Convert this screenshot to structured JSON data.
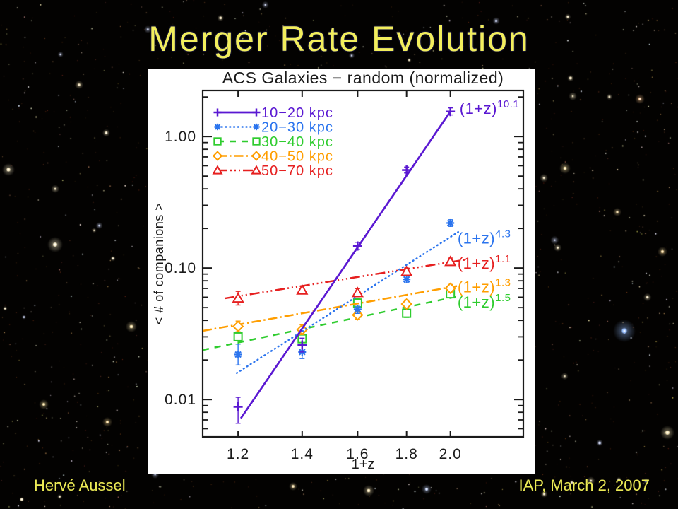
{
  "slide": {
    "title": "Merger Rate Evolution"
  },
  "footer": {
    "author": "Hervé Aussel",
    "venue_date": "IAP, March 2, 2007"
  },
  "colors": {
    "slide_title": "#f2ee5c",
    "footer_text": "#ecea55",
    "panel_bg": "#ffffff",
    "axis_ink": "#1a1a1a"
  },
  "chart_data": {
    "type": "line",
    "title": "ACS Galaxies − random (normalized)",
    "xlabel": "1+z",
    "ylabel": "< # of companions >",
    "x_scale": "log",
    "y_scale": "log",
    "xlim": [
      1.102,
      2.384
    ],
    "ylim": [
      0.0052,
      2.24
    ],
    "x_ticks": [
      1.2,
      1.4,
      1.6,
      1.8,
      2.0
    ],
    "x_tick_labels": [
      "1.2",
      "1.4",
      "1.6",
      "1.8",
      "2.0"
    ],
    "y_ticks": [
      1.0,
      0.1,
      0.01
    ],
    "y_tick_labels": [
      "1.00",
      "0.10",
      "0.01"
    ],
    "grid": false,
    "legend_position": "top-left",
    "x": [
      1.2,
      1.4,
      1.6,
      1.8,
      2.0
    ],
    "draw_order": [
      2,
      3,
      1,
      4,
      0
    ],
    "series": [
      {
        "name": "10−20 kpc",
        "color": "#5a18d2",
        "marker": "plus",
        "dash": "",
        "width": 2.7,
        "values": [
          0.0088,
          0.026,
          0.147,
          0.556,
          1.55
        ],
        "err_lo": [
          0.0066,
          0.023,
          0.138,
          0.528,
          1.46
        ],
        "err_hi": [
          0.0104,
          0.0293,
          0.157,
          0.586,
          1.65
        ],
        "fit": {
          "x": [
            1.208,
            2.0
          ],
          "y": [
            0.0072,
            1.55
          ]
        },
        "exp_label": {
          "base": "(1+z)",
          "exp": "10.1",
          "pos": [
            2.045,
            1.62
          ]
        }
      },
      {
        "name": "20−30 kpc",
        "color": "#2b74ee",
        "marker": "asterisk",
        "dash": "0.8,5",
        "width": 2.5,
        "values": [
          0.022,
          0.023,
          0.0486,
          0.082,
          0.22
        ],
        "err_lo": [
          0.0183,
          0.0205,
          0.0452,
          0.077,
          0.2075
        ],
        "err_hi": [
          0.0264,
          0.0258,
          0.0522,
          0.0873,
          0.233
        ],
        "fit": {
          "x": [
            1.196,
            2.038
          ],
          "y": [
            0.0159,
            0.188
          ]
        },
        "exp_label": {
          "base": "(1+z)",
          "exp": "4.3",
          "pos": [
            2.035,
            0.168
          ]
        }
      },
      {
        "name": "30−40 kpc",
        "color": "#2ecc2e",
        "marker": "square",
        "dash": "9,8",
        "width": 2.5,
        "values": [
          0.03,
          0.029,
          0.0542,
          0.0453,
          0.0637
        ],
        "err_lo": [
          0.0264,
          0.0261,
          0.0504,
          0.0421,
          0.0594
        ],
        "err_hi": [
          0.0341,
          0.0322,
          0.0583,
          0.0487,
          0.0683
        ],
        "fit": {
          "x": [
            1.102,
            2.04
          ],
          "y": [
            0.0238,
            0.0611
          ]
        },
        "exp_label": {
          "base": "(1+z)",
          "exp": "1.5",
          "pos": [
            2.035,
            0.0545
          ]
        }
      },
      {
        "name": "40−50 kpc",
        "color": "#ff9e00",
        "marker": "diamond",
        "dash": "13,4,2.5,4",
        "width": 2.5,
        "values": [
          0.036,
          0.034,
          0.044,
          0.0533,
          0.0702
        ],
        "err_lo": [
          0.0328,
          0.0312,
          0.0408,
          0.0497,
          0.0657
        ],
        "err_hi": [
          0.0395,
          0.037,
          0.0474,
          0.0571,
          0.075
        ],
        "fit": {
          "x": [
            1.102,
            2.043
          ],
          "y": [
            0.0333,
            0.0735
          ]
        },
        "exp_label": {
          "base": "(1+z)",
          "exp": "1.3",
          "pos": [
            2.035,
            0.0715
          ]
        }
      },
      {
        "name": "50−70 kpc",
        "color": "#e62020",
        "marker": "triangle",
        "dash": "14,4,2,4,2,4,2,4",
        "width": 2.5,
        "values": [
          0.059,
          0.068,
          0.065,
          0.094,
          0.112
        ],
        "err_lo": [
          0.0523,
          0.0637,
          0.0605,
          0.0883,
          0.1053
        ],
        "err_hi": [
          0.0665,
          0.0726,
          0.0698,
          0.1,
          0.1191
        ],
        "fit": {
          "x": [
            1.162,
            2.08
          ],
          "y": [
            0.0588,
            0.1162
          ]
        },
        "exp_label": {
          "base": "(1+z)",
          "exp": "1.1",
          "pos": [
            2.035,
            0.108
          ]
        }
      }
    ]
  }
}
